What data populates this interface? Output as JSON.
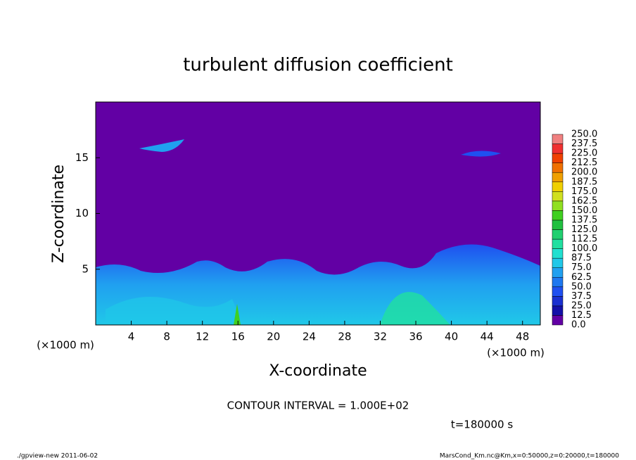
{
  "chart_data": {
    "type": "contour",
    "title": "turbulent diffusion coefficient",
    "xlabel": "X-coordinate",
    "ylabel": "Z-coordinate",
    "x_unit": "(×1000 m)",
    "xlim": [
      0,
      50
    ],
    "xticks": [
      4,
      8,
      12,
      16,
      20,
      24,
      28,
      32,
      36,
      40,
      44,
      48
    ],
    "ylim": [
      0,
      20
    ],
    "yticks": [
      5,
      10,
      15
    ],
    "levels": [
      {
        "value": 0,
        "label": "0.0"
      },
      {
        "value": 12.5,
        "label": "12.5"
      },
      {
        "value": 25,
        "label": "25.0"
      },
      {
        "value": 37.5,
        "label": "37.5"
      },
      {
        "value": 50,
        "label": "50.0"
      },
      {
        "value": 62.5,
        "label": "62.5"
      },
      {
        "value": 75,
        "label": "75.0"
      },
      {
        "value": 87.5,
        "label": "87.5"
      },
      {
        "value": 100,
        "label": "100.0"
      },
      {
        "value": 112.5,
        "label": "112.5"
      },
      {
        "value": 125,
        "label": "125.0"
      },
      {
        "value": 137.5,
        "label": "137.5"
      },
      {
        "value": 150,
        "label": "150.0"
      },
      {
        "value": 162.5,
        "label": "162.5"
      },
      {
        "value": 175,
        "label": "175.0"
      },
      {
        "value": 187.5,
        "label": "187.5"
      },
      {
        "value": 200,
        "label": "200.0"
      },
      {
        "value": 212.5,
        "label": "212.5"
      },
      {
        "value": 225,
        "label": "225.0"
      },
      {
        "value": 237.5,
        "label": "237.5"
      },
      {
        "value": 250,
        "label": "250.0"
      }
    ],
    "colors": [
      "#6200a4",
      "#1410a8",
      "#1a30d0",
      "#1f50f0",
      "#1e78f0",
      "#20a0f0",
      "#20c8e8",
      "#20e0d0",
      "#20e0a0",
      "#20d070",
      "#20c040",
      "#40d020",
      "#90e020",
      "#d0e020",
      "#f0d000",
      "#f0a000",
      "#f07000",
      "#f04000",
      "#f03030",
      "#f08080"
    ],
    "contour_interval": "CONTOUR INTERVAL = 1.000E+02",
    "time": "t=180000 s",
    "footer_left": "./gpview-new  2011-06-02",
    "footer_right": "MarsCond_Km.nc@Km,x=0:50000,z=0:20000,t=180000"
  }
}
